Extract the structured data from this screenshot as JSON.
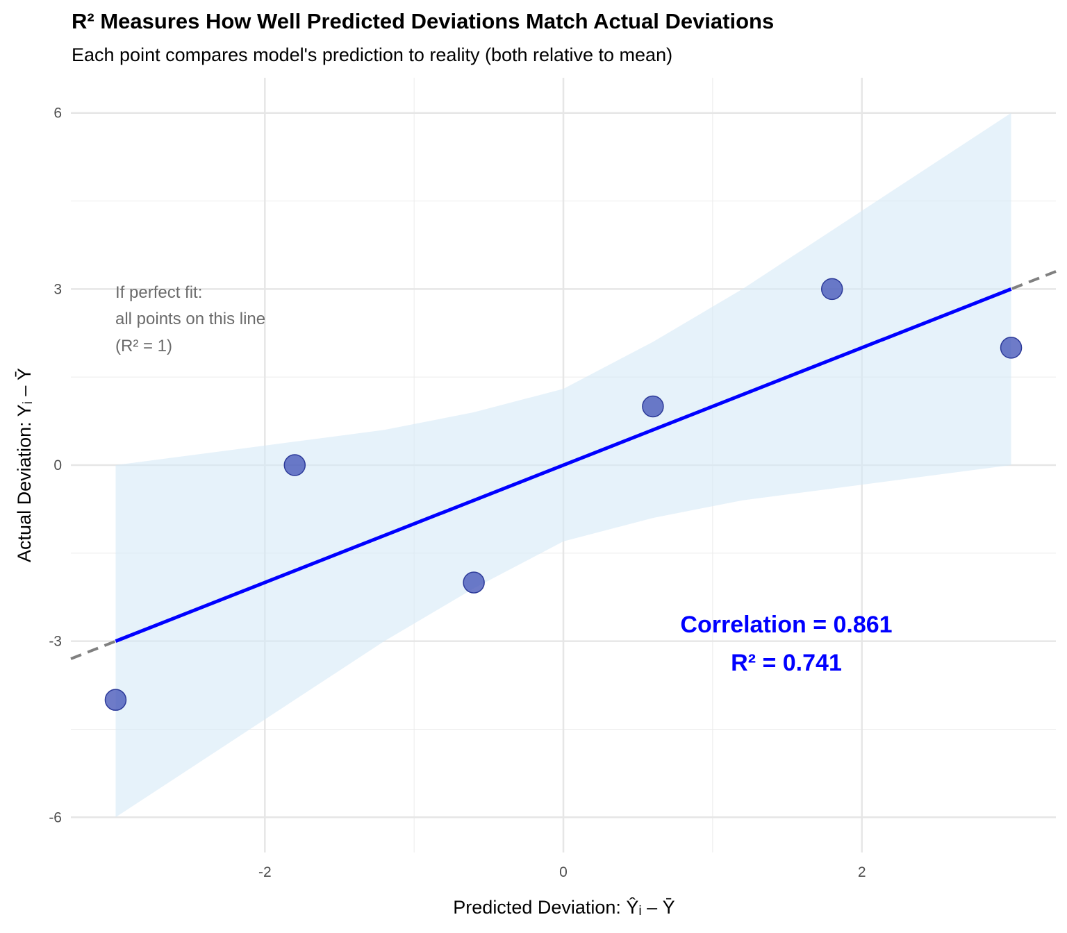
{
  "chart_data": {
    "type": "scatter",
    "title": "R² Measures How Well Predicted Deviations Match Actual Deviations",
    "subtitle": "Each point compares model's prediction to reality (both relative to mean)",
    "xlabel": "Predicted Deviation: Ŷᵢ – Ȳ",
    "ylabel": "Actual Deviation: Yᵢ – Ȳ",
    "xlim": [
      -3.3,
      3.3
    ],
    "ylim": [
      -6.6,
      6.6
    ],
    "x_ticks": [
      -2,
      0,
      2
    ],
    "y_ticks": [
      -6,
      -3,
      0,
      3,
      6
    ],
    "x_tick_labels": [
      "-2",
      "0",
      "2"
    ],
    "y_tick_labels": [
      "-6",
      "-3",
      "0",
      "3",
      "6"
    ],
    "grid": true,
    "points": [
      {
        "x": -3.0,
        "y": -4
      },
      {
        "x": -1.8,
        "y": 0
      },
      {
        "x": -0.6,
        "y": -2
      },
      {
        "x": 0.6,
        "y": 1
      },
      {
        "x": 1.8,
        "y": 3
      },
      {
        "x": 3.0,
        "y": 2
      }
    ],
    "fit_line": {
      "x": [
        -3.0,
        3.0
      ],
      "y": [
        -3.0,
        3.0
      ]
    },
    "confidence_band": {
      "x": [
        -3.0,
        -2.4,
        -1.8,
        -1.2,
        -0.6,
        0.0,
        0.6,
        1.2,
        1.8,
        2.4,
        3.0
      ],
      "lower": [
        -6.0,
        -5.0,
        -4.0,
        -3.0,
        -2.1,
        -1.3,
        -0.9,
        -0.6,
        -0.4,
        -0.2,
        0.0
      ],
      "upper": [
        0.0,
        0.2,
        0.4,
        0.6,
        0.9,
        1.3,
        2.1,
        3.0,
        4.0,
        5.0,
        6.0
      ]
    },
    "reference_line": {
      "x": [
        -3.3,
        3.3
      ],
      "y": [
        -3.3,
        3.3
      ]
    },
    "annotations": {
      "perfect_fit": [
        "If perfect fit:",
        "all points on this line",
        "(R² = 1)"
      ],
      "correlation": "Correlation = 0.861",
      "r_squared": "R² = 0.741"
    },
    "colors": {
      "points": "#3e4fb5",
      "fit_line": "#0000ff",
      "band": "#d6e9f6",
      "reference": "#808080",
      "stats_text": "#0000ff"
    }
  }
}
